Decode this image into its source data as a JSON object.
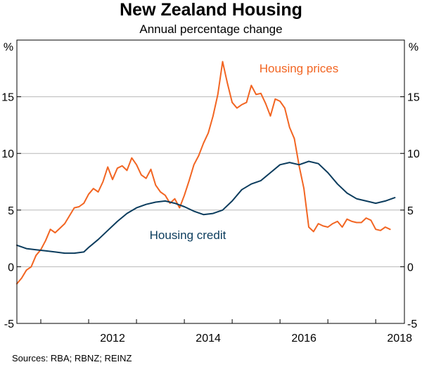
{
  "chart_data": {
    "type": "line",
    "title": "New Zealand Housing",
    "subtitle": "Annual percentage change",
    "ylabel_left": "%",
    "ylabel_right": "%",
    "ylim": [
      -5,
      20
    ],
    "yticks": [
      -5,
      0,
      5,
      10,
      15
    ],
    "xlim": [
      2010.5,
      2018.6
    ],
    "xticks": [
      2012,
      2014,
      2016,
      2018
    ],
    "grid": true,
    "source": "Sources: RBA; RBNZ; REINZ",
    "series": [
      {
        "name": "Housing prices",
        "color": "#f26522",
        "label_position": "top-right",
        "x": [
          2010.5,
          2010.6,
          2010.7,
          2010.8,
          2010.9,
          2011.0,
          2011.1,
          2011.2,
          2011.3,
          2011.4,
          2011.5,
          2011.6,
          2011.7,
          2011.8,
          2011.9,
          2012.0,
          2012.1,
          2012.2,
          2012.3,
          2012.4,
          2012.5,
          2012.6,
          2012.7,
          2012.8,
          2012.9,
          2013.0,
          2013.1,
          2013.2,
          2013.3,
          2013.4,
          2013.5,
          2013.6,
          2013.7,
          2013.8,
          2013.9,
          2014.0,
          2014.1,
          2014.2,
          2014.3,
          2014.4,
          2014.5,
          2014.6,
          2014.7,
          2014.8,
          2014.9,
          2015.0,
          2015.1,
          2015.2,
          2015.3,
          2015.4,
          2015.5,
          2015.6,
          2015.7,
          2015.8,
          2015.9,
          2016.0,
          2016.1,
          2016.2,
          2016.3,
          2016.4,
          2016.5,
          2016.6,
          2016.7,
          2016.8,
          2016.9,
          2017.0,
          2017.1,
          2017.2,
          2017.3,
          2017.4,
          2017.5,
          2017.6,
          2017.7,
          2017.8,
          2017.9,
          2018.0,
          2018.1,
          2018.2,
          2018.3
        ],
        "values": [
          -1.5,
          -1.0,
          -0.3,
          0.0,
          1.0,
          1.5,
          2.3,
          3.3,
          3.0,
          3.4,
          3.8,
          4.5,
          5.2,
          5.3,
          5.6,
          6.4,
          6.9,
          6.6,
          7.5,
          8.8,
          7.7,
          8.7,
          8.9,
          8.5,
          9.6,
          9.0,
          8.1,
          7.8,
          8.6,
          7.2,
          6.6,
          6.3,
          5.6,
          6.0,
          5.2,
          6.3,
          7.6,
          9.0,
          9.8,
          10.9,
          11.8,
          13.3,
          15.2,
          18.1,
          16.2,
          14.5,
          14.0,
          14.3,
          14.5,
          16.0,
          15.2,
          15.3,
          14.4,
          13.3,
          14.8,
          14.6,
          14.0,
          12.3,
          11.3,
          8.9,
          6.9,
          3.5,
          3.1,
          3.8,
          3.6,
          3.5,
          3.8,
          4.0,
          3.5,
          4.2,
          4.0,
          3.9,
          3.9,
          4.3,
          4.1,
          3.3,
          3.2,
          3.5,
          3.3
        ]
      },
      {
        "name": "Housing credit",
        "color": "#0b3c5d",
        "label_position": "center",
        "x": [
          2010.5,
          2010.7,
          2010.9,
          2011.1,
          2011.3,
          2011.5,
          2011.7,
          2011.9,
          2012.0,
          2012.2,
          2012.4,
          2012.6,
          2012.8,
          2013.0,
          2013.2,
          2013.4,
          2013.6,
          2013.8,
          2014.0,
          2014.2,
          2014.4,
          2014.6,
          2014.8,
          2015.0,
          2015.2,
          2015.4,
          2015.6,
          2015.8,
          2016.0,
          2016.2,
          2016.4,
          2016.6,
          2016.8,
          2017.0,
          2017.2,
          2017.4,
          2017.6,
          2017.8,
          2018.0,
          2018.2,
          2018.4
        ],
        "values": [
          1.9,
          1.6,
          1.5,
          1.4,
          1.3,
          1.2,
          1.2,
          1.3,
          1.7,
          2.4,
          3.2,
          4.0,
          4.7,
          5.2,
          5.5,
          5.7,
          5.8,
          5.6,
          5.3,
          4.9,
          4.6,
          4.7,
          5.0,
          5.8,
          6.8,
          7.3,
          7.6,
          8.3,
          9.0,
          9.2,
          9.0,
          9.3,
          9.1,
          8.3,
          7.3,
          6.5,
          6.0,
          5.8,
          5.6,
          5.8,
          6.1
        ]
      }
    ]
  }
}
